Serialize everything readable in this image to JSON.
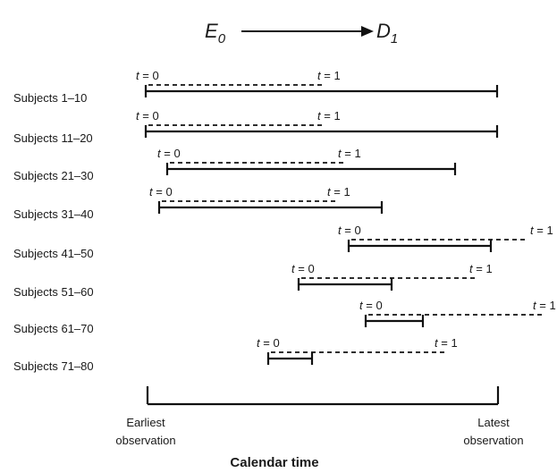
{
  "header": {
    "from": "E",
    "from_sub": "0",
    "to": "D",
    "to_sub": "1"
  },
  "axis": {
    "left_line1": "Earliest",
    "left_line2": "observation",
    "right_line1": "Latest",
    "right_line2": "observation",
    "title": "Calendar time"
  },
  "t0_label": "t = 0",
  "t1_label": "t = 1",
  "rows": [
    {
      "label": "Subjects 1–10"
    },
    {
      "label": "Subjects 11–20"
    },
    {
      "label": "Subjects 21–30"
    },
    {
      "label": "Subjects 31–40"
    },
    {
      "label": "Subjects 41–50"
    },
    {
      "label": "Subjects 51–60"
    },
    {
      "label": "Subjects 61–70"
    },
    {
      "label": "Subjects 71–80"
    }
  ]
}
